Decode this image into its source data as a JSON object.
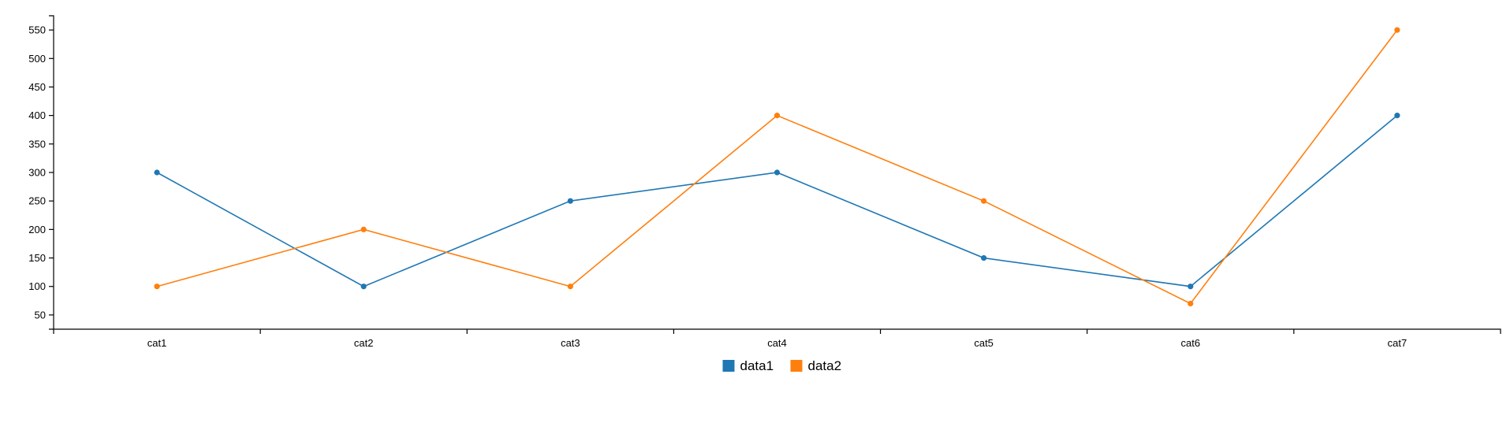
{
  "chart_data": {
    "type": "line",
    "categories": [
      "cat1",
      "cat2",
      "cat3",
      "cat4",
      "cat5",
      "cat6",
      "cat7"
    ],
    "series": [
      {
        "name": "data1",
        "color": "#1f77b4",
        "values": [
          300,
          100,
          250,
          300,
          150,
          100,
          400
        ]
      },
      {
        "name": "data2",
        "color": "#ff7f0e",
        "values": [
          100,
          200,
          100,
          400,
          250,
          70,
          550
        ]
      }
    ],
    "yticks": [
      50,
      100,
      150,
      200,
      250,
      300,
      350,
      400,
      450,
      500,
      550
    ],
    "ylim": [
      25,
      575
    ],
    "grid": false,
    "legend_position": "bottom-center"
  }
}
